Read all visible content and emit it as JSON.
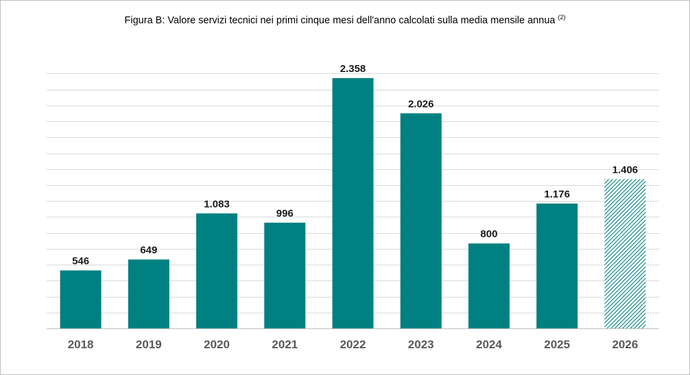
{
  "title": {
    "text": "Figura B: Valore servizi tecnici nei primi cinque mesi dell'anno  calcolati sulla media mensile annua",
    "footnote": "(2)"
  },
  "chart_data": {
    "type": "bar",
    "title": "Figura B: Valore servizi tecnici nei primi cinque mesi dell'anno  calcolati sulla media mensile annua",
    "categories": [
      "2018",
      "2019",
      "2020",
      "2021",
      "2022",
      "2023",
      "2024",
      "2025",
      "2026"
    ],
    "values": [
      546,
      649,
      1083,
      996,
      2358,
      2026,
      800,
      1176,
      1406
    ],
    "value_labels": [
      "546",
      "649",
      "1.083",
      "996",
      "2.358",
      "2.026",
      "800",
      "1.176",
      "1.406"
    ],
    "projected": [
      false,
      false,
      false,
      false,
      false,
      false,
      false,
      false,
      true
    ],
    "xlabel": "",
    "ylabel": "",
    "ylim": [
      0,
      2480
    ],
    "grid": true,
    "legend": "none",
    "colors": {
      "bar": "#008080",
      "hatch": "#008080",
      "grid": "#d9d9d9",
      "axis": "#bfbfbf"
    }
  }
}
